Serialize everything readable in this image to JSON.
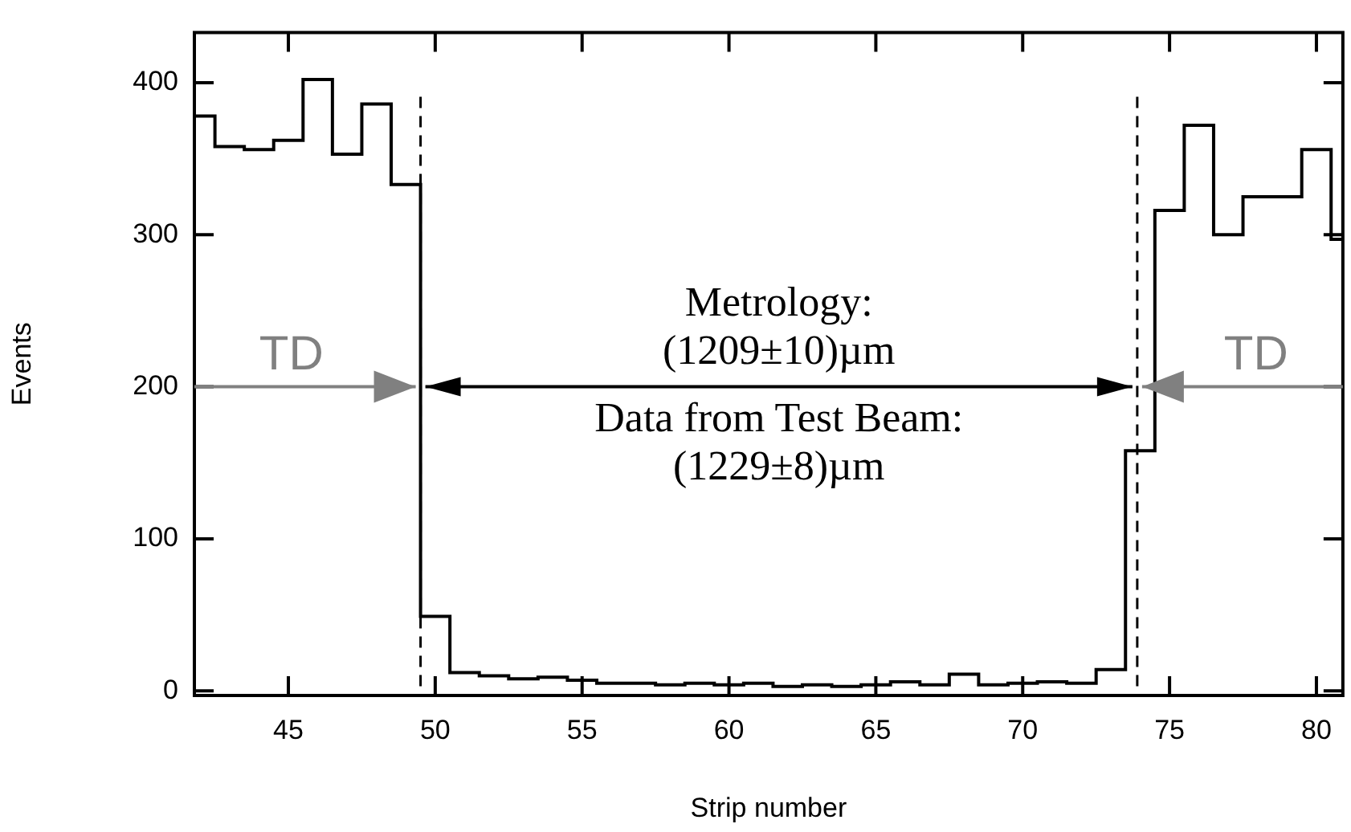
{
  "chart_data": {
    "type": "histogram",
    "xlabel": "Strip number",
    "ylabel": "Events",
    "bins": [
      41.8,
      42.5,
      43.5,
      44.5,
      45.5,
      46.5,
      47.5,
      48.5,
      49.5,
      50.5,
      51.5,
      52.5,
      53.5,
      54.5,
      55.5,
      56.5,
      57.5,
      58.5,
      59.5,
      60.5,
      61.5,
      62.5,
      63.5,
      64.5,
      65.5,
      66.5,
      67.5,
      68.5,
      69.5,
      70.5,
      71.5,
      72.5,
      73.5,
      74.5,
      75.5,
      76.5,
      77.5,
      78.5,
      79.5,
      80.5,
      80.9
    ],
    "values": [
      378,
      358,
      356,
      362,
      402,
      353,
      386,
      333,
      49,
      12,
      10,
      8,
      9,
      7,
      5,
      5,
      4,
      5,
      4,
      5,
      3,
      4,
      3,
      4,
      6,
      4,
      11,
      4,
      5,
      6,
      5,
      14,
      158,
      316,
      372,
      300,
      325,
      325,
      356,
      297
    ],
    "color": "#000000",
    "xlim": [
      41.8,
      80.9
    ],
    "xticks": [
      45,
      50,
      55,
      60,
      65,
      70,
      75,
      80
    ],
    "ylim": [
      -3,
      433
    ],
    "yticks": [
      0,
      100,
      200,
      300,
      400
    ],
    "ref_lines": [
      {
        "axis": "x",
        "value": 49.5,
        "line_style": "dashed",
        "color": "#000000"
      },
      {
        "axis": "x",
        "value": 73.9,
        "line_style": "dashed",
        "color": "#000000"
      }
    ],
    "annotations": [
      {
        "text": "TD",
        "x": 49.5,
        "y": 200
      },
      {
        "text": "TD",
        "x": 73.9,
        "y": 200
      },
      "Metrology:\n(1209±10)µm\nData from Test Beam:\n(1229±8)µm"
    ],
    "grid": false,
    "legend": false
  }
}
